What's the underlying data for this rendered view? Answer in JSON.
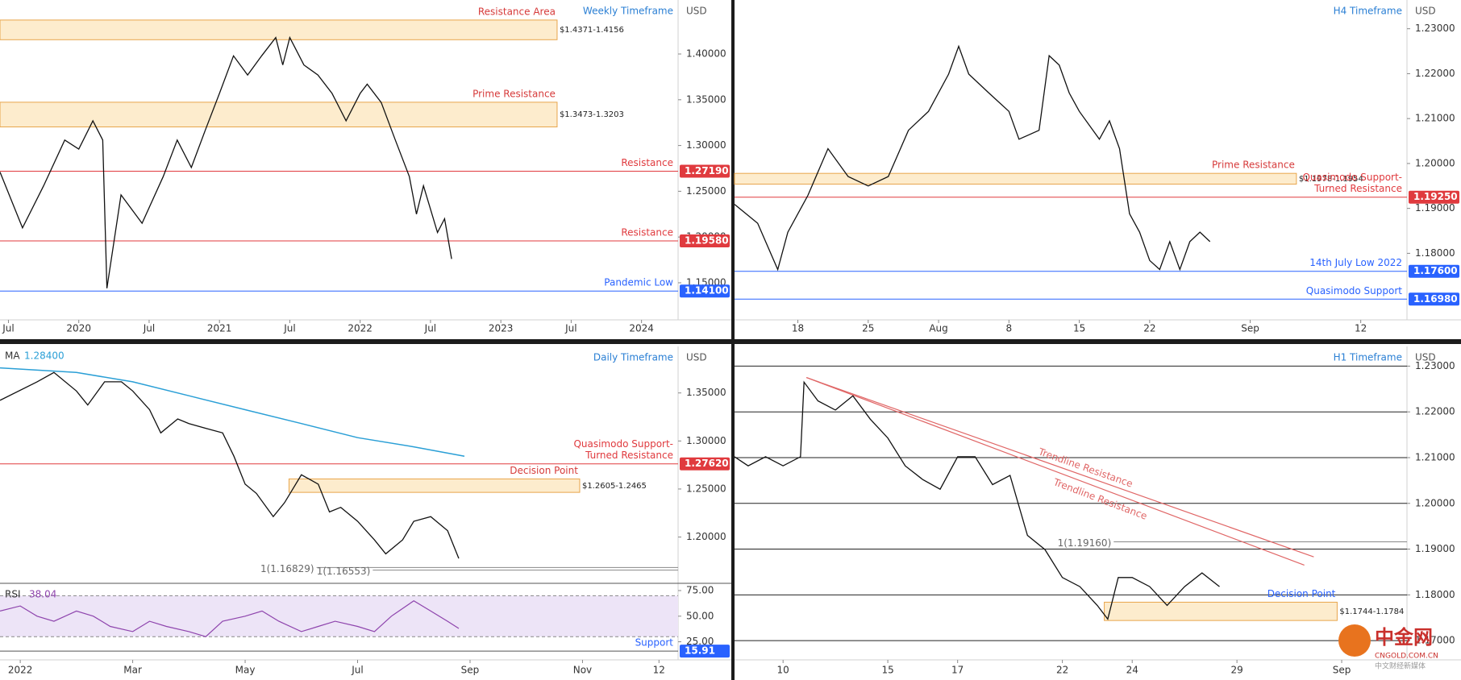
{
  "chart_data": [
    {
      "type": "line",
      "title": "Weekly Timeframe",
      "currency": "USD",
      "color": "#111111",
      "xlim": [
        2019.44,
        2024.26
      ],
      "ylim": [
        1.113,
        1.459
      ],
      "xticks": [
        {
          "value": 2019.5,
          "label": "Jul"
        },
        2020,
        {
          "value": 2020.5,
          "label": "Jul"
        },
        2021,
        {
          "value": 2021.5,
          "label": "Jul"
        },
        2022,
        {
          "value": 2022.5,
          "label": "Jul"
        },
        2023,
        {
          "value": 2023.5,
          "label": "Jul"
        },
        2024
      ],
      "yticks": [
        {
          "value": 1.15,
          "label": "1.15000"
        },
        {
          "value": 1.2,
          "label": "1.20000"
        },
        {
          "value": 1.25,
          "label": "1.25000"
        },
        {
          "value": 1.3,
          "label": "1.30000"
        },
        {
          "value": 1.35,
          "label": "1.35000"
        },
        {
          "value": 1.4,
          "label": "1.40000"
        }
      ],
      "x": [
        2019.44,
        2019.6,
        2019.75,
        2019.9,
        2020.0,
        2020.1,
        2020.17,
        2020.2,
        2020.3,
        2020.45,
        2020.6,
        2020.7,
        2020.8,
        2020.9,
        2021.0,
        2021.1,
        2021.2,
        2021.3,
        2021.4,
        2021.45,
        2021.5,
        2021.6,
        2021.7,
        2021.8,
        2021.9,
        2022.0,
        2022.05,
        2022.15,
        2022.25,
        2022.35,
        2022.4,
        2022.45,
        2022.55,
        2022.6,
        2022.65
      ],
      "values": [
        1.271,
        1.21,
        1.256,
        1.306,
        1.296,
        1.327,
        1.306,
        1.144,
        1.246,
        1.215,
        1.266,
        1.306,
        1.276,
        1.317,
        1.357,
        1.398,
        1.377,
        1.398,
        1.418,
        1.388,
        1.418,
        1.388,
        1.377,
        1.357,
        1.327,
        1.357,
        1.367,
        1.347,
        1.306,
        1.266,
        1.225,
        1.256,
        1.205,
        1.22,
        1.176
      ],
      "zones": [
        {
          "name": "Resistance Area",
          "name_color": "#d63a3a",
          "label": "$1.4371-1.4156",
          "high": 1.4371,
          "low": 1.4156,
          "x": [
            2019.44,
            2023.4
          ]
        },
        {
          "name": "Prime Resistance",
          "name_color": "#d63a3a",
          "label": "$1.3473-1.3203",
          "high": 1.3473,
          "low": 1.3203,
          "x": [
            2019.44,
            2023.4
          ]
        }
      ],
      "levels": [
        {
          "name": "Resistance",
          "value": 1.2719,
          "label": "1.27190",
          "color": "#e03a3e"
        },
        {
          "name": "Resistance",
          "value": 1.1958,
          "label": "1.19580",
          "color": "#e03a3e"
        },
        {
          "name": "Pandemic Low",
          "value": 1.141,
          "label": "1.14100",
          "color": "#2962ff"
        }
      ]
    },
    {
      "type": "line",
      "title": "H4 Timeframe",
      "currency": "USD",
      "color": "#111111",
      "xlim": [
        -20.3,
        46.6
      ],
      "ylim": [
        1.1659,
        1.2364
      ],
      "xticks": [
        {
          "value": -14,
          "label": "18"
        },
        {
          "value": -7,
          "label": "25"
        },
        {
          "value": 0,
          "label": "Aug"
        },
        {
          "value": 7,
          "label": "8"
        },
        {
          "value": 14,
          "label": "15"
        },
        {
          "value": 21,
          "label": "22"
        },
        {
          "value": 31,
          "label": "Sep"
        },
        {
          "value": 42,
          "label": "12"
        }
      ],
      "yticks": [
        {
          "value": 1.18,
          "label": "1.18000"
        },
        {
          "value": 1.19,
          "label": "1.19000"
        },
        {
          "value": 1.2,
          "label": "1.20000"
        },
        {
          "value": 1.21,
          "label": "1.21000"
        },
        {
          "value": 1.22,
          "label": "1.22000"
        },
        {
          "value": 1.23,
          "label": "1.23000"
        }
      ],
      "x": [
        -20.3,
        -18,
        -16,
        -15,
        -13,
        -11,
        -9,
        -7,
        -5,
        -3,
        -1,
        1,
        2,
        3,
        5,
        7,
        8,
        10,
        11,
        12,
        13,
        14,
        16,
        17,
        18,
        19,
        20,
        21,
        22,
        23,
        24,
        25,
        26,
        27
      ],
      "values": [
        1.1909,
        1.1867,
        1.1764,
        1.1847,
        1.1929,
        1.2033,
        1.1971,
        1.195,
        1.1971,
        1.2074,
        1.2116,
        1.2199,
        1.2261,
        1.2199,
        1.2157,
        1.2116,
        1.2054,
        1.2074,
        1.224,
        1.2219,
        1.2157,
        1.2116,
        1.2054,
        1.2095,
        1.2033,
        1.1888,
        1.1847,
        1.1784,
        1.1764,
        1.1826,
        1.1764,
        1.1826,
        1.1847,
        1.1826
      ],
      "zones": [
        {
          "name": "Prime Resistance",
          "name_color": "#d63a3a",
          "label": "$1.1978-1.1954",
          "high": 1.1978,
          "low": 1.1954,
          "x": [
            -20.3,
            35.6
          ]
        }
      ],
      "levels": [
        {
          "name": [
            "Quasimodo Support-",
            "Turned Resistance"
          ],
          "value": 1.1925,
          "label": "1.19250",
          "color": "#e03a3e"
        },
        {
          "name": "14th July Low 2022",
          "value": 1.176,
          "label": "1.17600",
          "color": "#2962ff"
        },
        {
          "name": "Quasimodo Support",
          "value": 1.1698,
          "label": "1.16980",
          "color": "#2962ff"
        }
      ]
    },
    {
      "type": "line",
      "title": "Daily Timeframe",
      "currency": "USD",
      "color": "#111111",
      "xlim": [
        -0.36,
        11.7
      ],
      "ylim": [
        1.1535,
        1.3984
      ],
      "xticks": [
        {
          "value": 0,
          "label": "2022"
        },
        {
          "value": 2,
          "label": "Mar"
        },
        {
          "value": 4,
          "label": "May"
        },
        {
          "value": 6,
          "label": "Jul"
        },
        {
          "value": 8,
          "label": "Sep"
        },
        {
          "value": 10,
          "label": "Nov"
        },
        {
          "value": 11.36,
          "label": "12"
        }
      ],
      "yticks": [
        {
          "value": 1.2,
          "label": "1.20000"
        },
        {
          "value": 1.25,
          "label": "1.25000"
        },
        {
          "value": 1.3,
          "label": "1.30000"
        },
        {
          "value": 1.35,
          "label": "1.35000"
        }
      ],
      "x": [
        -0.36,
        0.3,
        0.6,
        1.0,
        1.2,
        1.5,
        1.8,
        2.0,
        2.3,
        2.5,
        2.8,
        3.0,
        3.3,
        3.6,
        3.8,
        4.0,
        4.2,
        4.5,
        4.7,
        5.0,
        5.3,
        5.5,
        5.7,
        6.0,
        6.3,
        6.5,
        6.8,
        7.0,
        7.3,
        7.6,
        7.8
      ],
      "values": [
        1.3423,
        1.3616,
        1.3713,
        1.352,
        1.3374,
        1.3616,
        1.3616,
        1.352,
        1.3326,
        1.3084,
        1.3229,
        1.3181,
        1.3132,
        1.3084,
        1.2842,
        1.2551,
        1.2454,
        1.2213,
        1.2358,
        1.2648,
        1.2551,
        1.2261,
        1.2309,
        1.2164,
        1.197,
        1.1825,
        1.197,
        1.2164,
        1.2213,
        1.2067,
        1.1777
      ],
      "ma": {
        "name": "MA",
        "label": "1.28400",
        "color": "#2a9fd6",
        "x": [
          -0.36,
          1,
          2,
          3,
          4,
          5,
          6,
          7,
          7.9
        ],
        "values": [
          1.3761,
          1.3713,
          1.3616,
          1.3471,
          1.3326,
          1.3181,
          1.3035,
          1.2939,
          1.2842
        ]
      },
      "zones": [
        {
          "name": "Decision Point",
          "name_color": "#d63a3a",
          "label": "$1.2605-1.2465",
          "high": 1.2605,
          "low": 1.2465,
          "x": [
            4.78,
            9.95
          ]
        }
      ],
      "levels": [
        {
          "name": [
            "Quasimodo Support-",
            "Turned Resistance"
          ],
          "value": 1.2762,
          "label": "1.27620",
          "color": "#e03a3e"
        }
      ],
      "fibs": [
        {
          "label": "1(1.16829)",
          "value": 1.16829,
          "x_start": 5.27
        },
        {
          "label": "1(1.16553)",
          "value": 1.16553,
          "x_start": 6.27
        }
      ],
      "rsi": {
        "name": "RSI",
        "label": "38.04",
        "color": "#8e44ad",
        "ylim": [
          10.5,
          80.5
        ],
        "band": [
          30,
          70
        ],
        "yticks": [
          {
            "value": 25,
            "label": "25.00"
          },
          {
            "value": 50,
            "label": "50.00"
          },
          {
            "value": 75,
            "label": "75.00"
          }
        ],
        "x": [
          -0.36,
          0,
          0.3,
          0.6,
          1,
          1.3,
          1.6,
          2,
          2.3,
          2.6,
          3,
          3.3,
          3.6,
          4,
          4.3,
          4.6,
          5,
          5.3,
          5.6,
          6,
          6.3,
          6.6,
          7,
          7.3,
          7.6,
          7.8
        ],
        "values": [
          55,
          60,
          50,
          45,
          55,
          50,
          40,
          35,
          45,
          40,
          35,
          30,
          45,
          50,
          55,
          45,
          35,
          40,
          45,
          40,
          35,
          50,
          65,
          55,
          45,
          38.04
        ],
        "levels": [
          {
            "name": "Support",
            "value": 15.91,
            "label": "15.91",
            "color": "#2962ff"
          }
        ]
      }
    },
    {
      "type": "line",
      "title": "H1 Timeframe",
      "currency": "USD",
      "color": "#111111",
      "grid": true,
      "xlim": [
        -1.39,
        17.87
      ],
      "ylim": [
        1.1665,
        1.2343
      ],
      "xticks": [
        {
          "value": 0,
          "label": "10"
        },
        {
          "value": 3,
          "label": "15"
        },
        {
          "value": 5,
          "label": "17"
        },
        {
          "value": 8,
          "label": "22"
        },
        {
          "value": 10,
          "label": "24"
        },
        {
          "value": 13,
          "label": "29"
        },
        {
          "value": 16,
          "label": "Sep"
        }
      ],
      "yticks": [
        {
          "value": 1.17,
          "label": "1.17000"
        },
        {
          "value": 1.18,
          "label": "1.18000"
        },
        {
          "value": 1.19,
          "label": "1.19000"
        },
        {
          "value": 1.2,
          "label": "1.20000"
        },
        {
          "value": 1.21,
          "label": "1.21000"
        },
        {
          "value": 1.22,
          "label": "1.22000"
        },
        {
          "value": 1.23,
          "label": "1.23000"
        }
      ],
      "x": [
        -1.39,
        -1,
        -0.5,
        0,
        0.5,
        0.6,
        1,
        1.5,
        2,
        2.5,
        3,
        3.5,
        4,
        4.5,
        5,
        5.5,
        6,
        6.5,
        7,
        7.5,
        8,
        8.5,
        9,
        9.3,
        9.6,
        10,
        10.5,
        11,
        11.5,
        12,
        12.5
      ],
      "values": [
        1.2102,
        1.2082,
        1.2102,
        1.2082,
        1.2102,
        1.2265,
        1.2224,
        1.2204,
        1.2235,
        1.2184,
        1.2143,
        1.2082,
        1.2052,
        1.2031,
        1.2102,
        1.2102,
        1.2041,
        1.2061,
        1.193,
        1.1899,
        1.1838,
        1.1818,
        1.1777,
        1.1747,
        1.1838,
        1.1838,
        1.1818,
        1.1777,
        1.1818,
        1.1848,
        1.1818
      ],
      "zones": [
        {
          "name": "Decision Point",
          "name_color": "#2962ff",
          "label": "$1.1744-1.1784",
          "high": 1.1784,
          "low": 1.1744,
          "x": [
            9.2,
            15.87
          ]
        }
      ],
      "fibs": [
        {
          "label": "1(1.19160)",
          "value": 1.1916,
          "x_start": 9.47
        }
      ],
      "trendlines": [
        {
          "name": "Trendline Resistance",
          "color": "#e06666",
          "x": [
            0.67,
            15.2
          ],
          "values": [
            1.2275,
            1.1883
          ]
        },
        {
          "name": "Trendline Resistance",
          "color": "#e06666",
          "x": [
            0.67,
            14.93
          ],
          "values": [
            1.2275,
            1.1865
          ]
        }
      ]
    }
  ],
  "watermark": {
    "logo": "中金网",
    "site": "CNGOLD.COM.CN",
    "slogan": "中文财经新媒体"
  }
}
